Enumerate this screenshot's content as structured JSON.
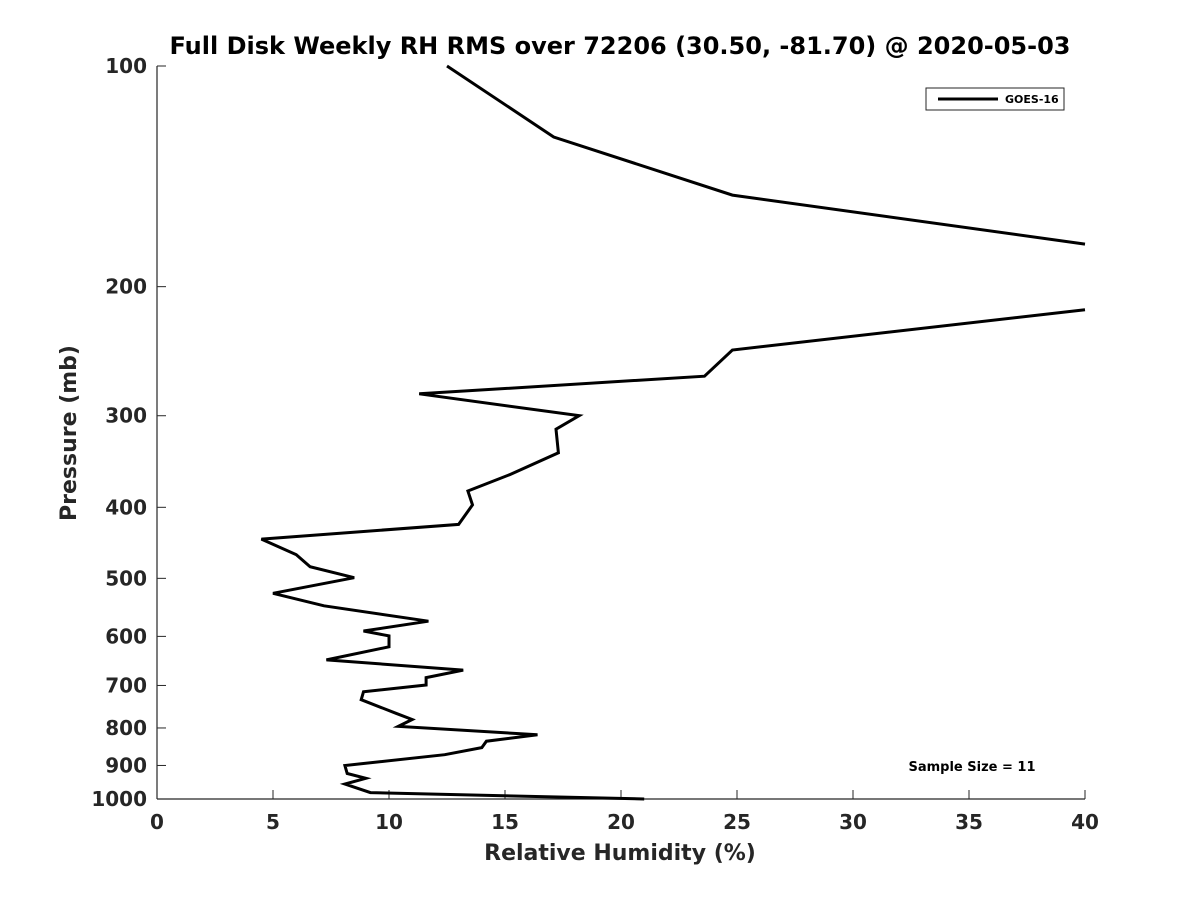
{
  "chart_data": {
    "type": "line",
    "title": "Full Disk Weekly RH RMS over 72206 (30.50, -81.70) @ 2020-05-03",
    "xlabel": "Relative Humidity (%)",
    "ylabel": "Pressure (mb)",
    "xlim": [
      0,
      40
    ],
    "ylim": [
      100,
      1000
    ],
    "yscale": "log",
    "yreversed": true,
    "x_ticks": [
      0,
      5,
      10,
      15,
      20,
      25,
      30,
      35,
      40
    ],
    "y_ticks": [
      100,
      200,
      300,
      400,
      500,
      600,
      700,
      800,
      900,
      1000
    ],
    "grid": false,
    "legend_position": "top-right",
    "annotation": "Sample Size = 11",
    "series": [
      {
        "name": "GOES-16",
        "color": "#000000",
        "segments": [
          {
            "x": [
              12.5,
              17.1,
              24.8,
              40.0
            ],
            "y": [
              100,
              125,
              150,
              175
            ]
          },
          {
            "x": [
              40.0,
              24.8,
              23.6,
              11.3,
              18.2,
              17.2,
              17.3,
              15.2,
              13.4,
              13.6,
              13.0,
              4.5,
              6.0,
              6.6,
              8.5,
              5.0,
              7.2,
              11.7,
              8.9,
              10.0,
              10.0,
              7.3,
              13.2,
              11.6,
              11.6,
              8.9,
              8.8,
              10.3,
              11.0,
              10.4,
              16.4,
              14.2,
              14.0,
              12.4,
              8.1,
              8.2,
              9.0,
              8.1,
              9.2,
              21.0
            ],
            "y": [
              215,
              244,
              265,
              280,
              300,
              313,
              337,
              361,
              380,
              397,
              422,
              442,
              464,
              482,
              499,
              524,
              545,
              572,
              590,
              599,
              620,
              646,
              667,
              683,
              699,
              714,
              732,
              764,
              779,
              796,
              817,
              834,
              851,
              870,
              900,
              923,
              937,
              954,
              980,
              1000
            ]
          }
        ]
      }
    ]
  }
}
